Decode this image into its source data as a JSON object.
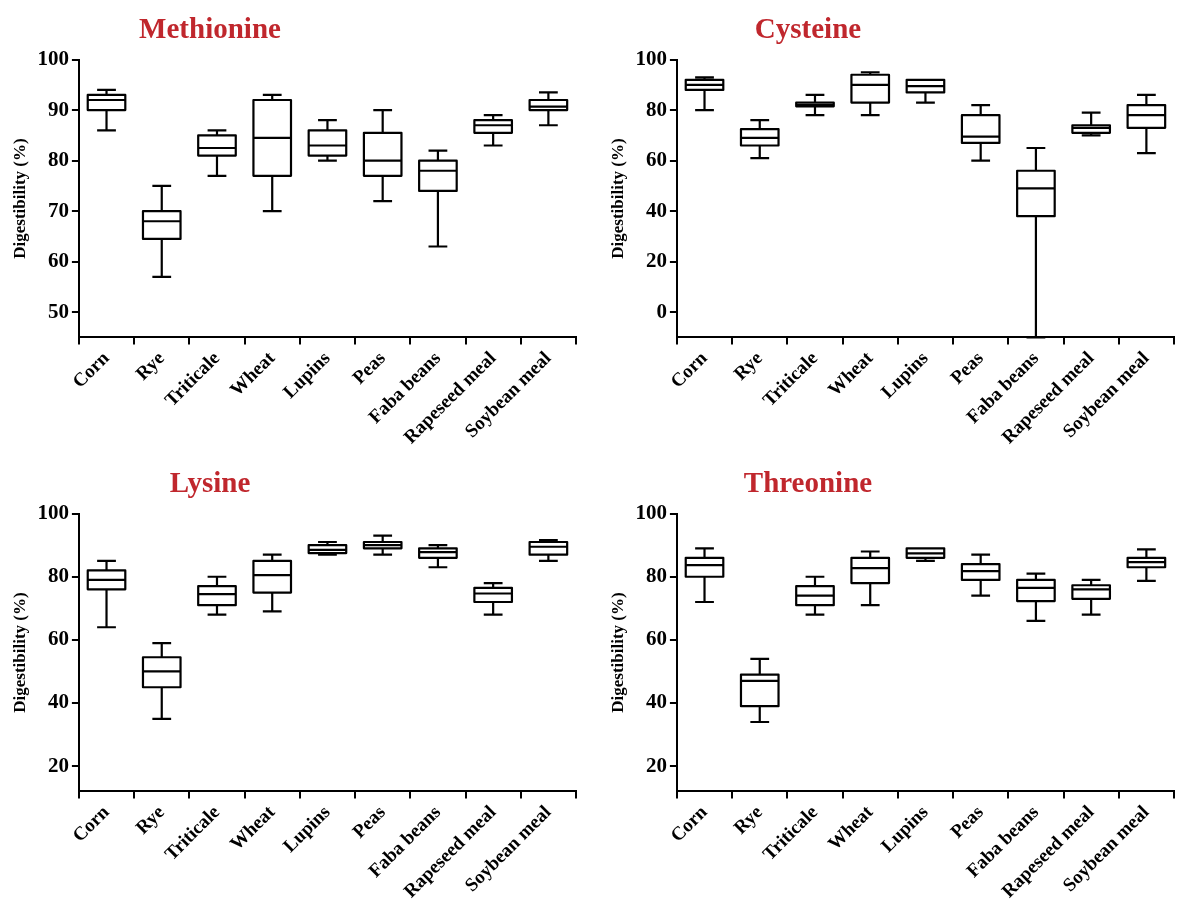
{
  "chart_data": [
    {
      "type": "box",
      "title": "Methionine",
      "ylabel": "Digestibility (%)",
      "categories": [
        "Corn",
        "Rye",
        "Triticale",
        "Wheat",
        "Lupins",
        "Peas",
        "Faba beans",
        "Rapeseed meal",
        "Soybean meal"
      ],
      "ylim": [
        45,
        100
      ],
      "yticks": [
        50,
        60,
        70,
        80,
        90,
        100
      ],
      "grid": false,
      "boxes": [
        {
          "low": 86,
          "q1": 90,
          "median": 92,
          "q3": 93,
          "high": 94
        },
        {
          "low": 57,
          "q1": 64.5,
          "median": 68,
          "q3": 70,
          "high": 75
        },
        {
          "low": 77,
          "q1": 81,
          "median": 82.5,
          "q3": 85,
          "high": 86
        },
        {
          "low": 70,
          "q1": 77,
          "median": 84.5,
          "q3": 92,
          "high": 93
        },
        {
          "low": 80,
          "q1": 81,
          "median": 83,
          "q3": 86,
          "high": 88
        },
        {
          "low": 72,
          "q1": 77,
          "median": 80,
          "q3": 85.5,
          "high": 90
        },
        {
          "low": 63,
          "q1": 74,
          "median": 78,
          "q3": 80,
          "high": 82
        },
        {
          "low": 83,
          "q1": 85.5,
          "median": 87,
          "q3": 88,
          "high": 89
        },
        {
          "low": 87,
          "q1": 90,
          "median": 90.7,
          "q3": 92,
          "high": 93.5
        }
      ]
    },
    {
      "type": "box",
      "title": "Cysteine",
      "ylabel": "Digestibility (%)",
      "categories": [
        "Corn",
        "Rye",
        "Triticale",
        "Wheat",
        "Lupins",
        "Peas",
        "Faba beans",
        "Rapeseed meal",
        "Soybean meal"
      ],
      "ylim": [
        -10,
        100
      ],
      "yticks": [
        0,
        20,
        40,
        60,
        80,
        100
      ],
      "grid": false,
      "boxes": [
        {
          "low": 80,
          "q1": 88,
          "median": 90,
          "q3": 92,
          "high": 93
        },
        {
          "low": 61,
          "q1": 66,
          "median": 69,
          "q3": 72.5,
          "high": 76
        },
        {
          "low": 78,
          "q1": 81.5,
          "median": 82,
          "q3": 83,
          "high": 86
        },
        {
          "low": 78,
          "q1": 83,
          "median": 90,
          "q3": 94,
          "high": 95
        },
        {
          "low": 83,
          "q1": 87,
          "median": 89.5,
          "q3": 92,
          "high": 92
        },
        {
          "low": 60,
          "q1": 67,
          "median": 69.5,
          "q3": 78,
          "high": 82
        },
        {
          "low": -10,
          "q1": 38,
          "median": 49,
          "q3": 56,
          "high": 65
        },
        {
          "low": 70,
          "q1": 71,
          "median": 73,
          "q3": 74,
          "high": 79
        },
        {
          "low": 63,
          "q1": 73,
          "median": 78,
          "q3": 82,
          "high": 86
        }
      ]
    },
    {
      "type": "box",
      "title": "Lysine",
      "ylabel": "Digestibility (%)",
      "categories": [
        "Corn",
        "Rye",
        "Triticale",
        "Wheat",
        "Lupins",
        "Peas",
        "Faba beans",
        "Rapeseed meal",
        "Soybean meal"
      ],
      "ylim": [
        12,
        100
      ],
      "yticks": [
        20,
        40,
        60,
        80,
        100
      ],
      "grid": false,
      "boxes": [
        {
          "low": 64,
          "q1": 76,
          "median": 79,
          "q3": 82,
          "high": 85
        },
        {
          "low": 35,
          "q1": 45,
          "median": 50,
          "q3": 54.5,
          "high": 59
        },
        {
          "low": 68,
          "q1": 71,
          "median": 74.5,
          "q3": 77,
          "high": 80
        },
        {
          "low": 69,
          "q1": 75,
          "median": 80.5,
          "q3": 85,
          "high": 87
        },
        {
          "low": 87,
          "q1": 87.5,
          "median": 88.5,
          "q3": 90,
          "high": 91
        },
        {
          "low": 87,
          "q1": 89,
          "median": 90,
          "q3": 91,
          "high": 93
        },
        {
          "low": 83,
          "q1": 86,
          "median": 87.8,
          "q3": 89,
          "high": 90
        },
        {
          "low": 68,
          "q1": 72,
          "median": 74.7,
          "q3": 76.5,
          "high": 78
        },
        {
          "low": 85,
          "q1": 87,
          "median": 89.5,
          "q3": 91,
          "high": 91.6
        }
      ]
    },
    {
      "type": "box",
      "title": "Threonine",
      "ylabel": "Digestibility (%)",
      "categories": [
        "Corn",
        "Rye",
        "Triticale",
        "Wheat",
        "Lupins",
        "Peas",
        "Faba beans",
        "Rapeseed meal",
        "Soybean meal"
      ],
      "ylim": [
        12,
        100
      ],
      "yticks": [
        20,
        40,
        60,
        80,
        100
      ],
      "grid": false,
      "boxes": [
        {
          "low": 72,
          "q1": 80,
          "median": 83.7,
          "q3": 86,
          "high": 89
        },
        {
          "low": 34,
          "q1": 39,
          "median": 47,
          "q3": 49,
          "high": 54
        },
        {
          "low": 68,
          "q1": 71,
          "median": 74,
          "q3": 77,
          "high": 80
        },
        {
          "low": 71,
          "q1": 78,
          "median": 82.7,
          "q3": 86,
          "high": 88
        },
        {
          "low": 85,
          "q1": 86,
          "median": 87.4,
          "q3": 89,
          "high": 89
        },
        {
          "low": 74,
          "q1": 79,
          "median": 81.8,
          "q3": 84,
          "high": 87
        },
        {
          "low": 66,
          "q1": 72.3,
          "median": 76.5,
          "q3": 79,
          "high": 81
        },
        {
          "low": 68,
          "q1": 73,
          "median": 76,
          "q3": 77.3,
          "high": 79
        },
        {
          "low": 78.7,
          "q1": 83,
          "median": 84.6,
          "q3": 86,
          "high": 88.7
        }
      ]
    }
  ]
}
